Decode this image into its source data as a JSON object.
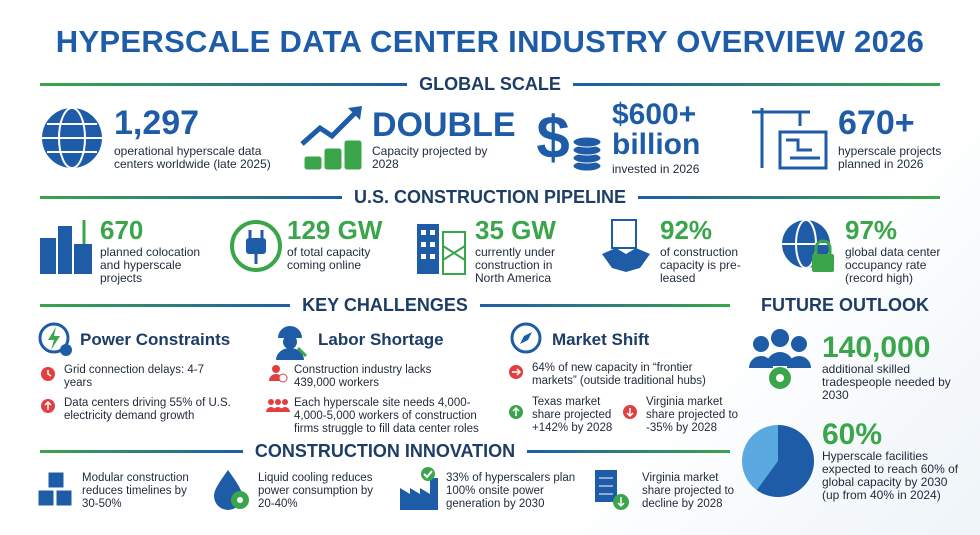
{
  "title": "HYPERSCALE DATA CENTER INDUSTRY OVERVIEW 2026",
  "global_scale": {
    "heading": "GLOBAL SCALE",
    "items": [
      {
        "value": "1,297",
        "text": "operational hyperscale data centers worldwide (late 2025)"
      },
      {
        "value": "DOUBLE",
        "text": "Capacity projected by 2028"
      },
      {
        "value": "$600+ billion",
        "text": "invested in 2026"
      },
      {
        "value": "670+",
        "text": "hyperscale projects planned in 2026"
      }
    ]
  },
  "us_pipeline": {
    "heading": "U.S. CONSTRUCTION PIPELINE",
    "items": [
      {
        "value": "670",
        "text": "planned colocation and hyperscale projects"
      },
      {
        "value": "129 GW",
        "text": "of total capacity coming online"
      },
      {
        "value": "35 GW",
        "text": "currently under construction in North America"
      },
      {
        "value": "92%",
        "text": "of construction capacity is pre-leased"
      },
      {
        "value": "97%",
        "text": "global data center occupancy rate (record high)"
      }
    ]
  },
  "key_challenges": {
    "heading": "KEY CHALLENGES",
    "groups": [
      {
        "title": "Power Constraints",
        "points": [
          "Grid connection delays: 4-7 years",
          "Data centers driving 55% of U.S. electricity demand growth"
        ]
      },
      {
        "title": "Labor Shortage",
        "points": [
          "Construction industry lacks 439,000 workers",
          "Each hyperscale site needs 4,000-4,000-5,000 workers of construction firms struggle to fill data center roles"
        ]
      },
      {
        "title": "Market Shift",
        "points": [
          "64% of new capacity in “frontier markets” (outside traditional hubs)",
          "Texas market share projected +142% by 2028",
          "Virginia market share projected to -35% by 2028"
        ]
      }
    ]
  },
  "future_outlook": {
    "heading": "FUTURE OUTLOOK",
    "items": [
      {
        "value": "140,000",
        "text": "additional skilled tradespeople needed by 2030"
      },
      {
        "value": "60%",
        "text": "Hyperscale facilities expected to reach 60% of global capacity by 2030 (up from 40% in 2024)"
      }
    ]
  },
  "construction_innovation": {
    "heading": "CONSTRUCTION INNOVATION",
    "items": [
      "Modular construction reduces timelines by 30-50%",
      "Liquid cooling reduces power consumption by 20-40%",
      "33% of hyperscalers plan 100% onsite power generation by 2030",
      "Virginia market share projected to decline by 2028"
    ]
  }
}
